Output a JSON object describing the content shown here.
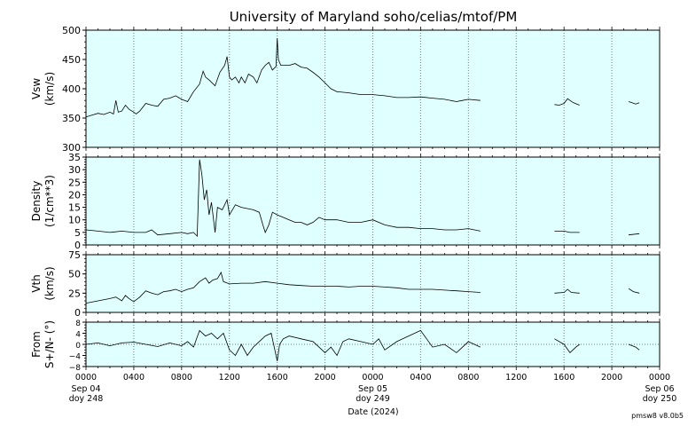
{
  "title": "University of Maryland  soho/celias/mtof/PM",
  "x_axis": {
    "label": "Date (2024)",
    "ticks": [
      {
        "hour": 0,
        "l1": "0000",
        "l2": "Sep 04",
        "l3": "doy 248"
      },
      {
        "hour": 4,
        "l1": "0400",
        "l2": "",
        "l3": ""
      },
      {
        "hour": 8,
        "l1": "0800",
        "l2": "",
        "l3": ""
      },
      {
        "hour": 12,
        "l1": "1200",
        "l2": "",
        "l3": ""
      },
      {
        "hour": 16,
        "l1": "1600",
        "l2": "",
        "l3": ""
      },
      {
        "hour": 20,
        "l1": "2000",
        "l2": "",
        "l3": ""
      },
      {
        "hour": 24,
        "l1": "0000",
        "l2": "Sep 05",
        "l3": "doy 249"
      },
      {
        "hour": 28,
        "l1": "0400",
        "l2": "",
        "l3": ""
      },
      {
        "hour": 32,
        "l1": "0800",
        "l2": "",
        "l3": ""
      },
      {
        "hour": 36,
        "l1": "1200",
        "l2": "",
        "l3": ""
      },
      {
        "hour": 40,
        "l1": "1600",
        "l2": "",
        "l3": ""
      },
      {
        "hour": 44,
        "l1": "2000",
        "l2": "",
        "l3": ""
      },
      {
        "hour": 48,
        "l1": "0000",
        "l2": "Sep 06",
        "l3": "doy 250"
      }
    ]
  },
  "footer": "pmsw8 v8.0b5",
  "colors": {
    "panel_bg": "#e0ffff",
    "line": "#000000",
    "grid": "#6e7f80"
  },
  "chart_data": [
    {
      "type": "line",
      "ylabel_1": "Vsw",
      "ylabel_2": "(km/s)",
      "ylim": [
        300,
        500
      ],
      "yticks": [
        300,
        350,
        400,
        450,
        500
      ],
      "ytick_labels": [
        "300",
        "350",
        "400",
        "450",
        "500"
      ],
      "minor_step": 10,
      "zero_line": false,
      "segments": [
        [
          [
            0,
            352
          ],
          [
            0.5,
            355
          ],
          [
            1,
            358
          ],
          [
            1.5,
            356
          ],
          [
            2,
            360
          ],
          [
            2.3,
            357
          ],
          [
            2.5,
            380
          ],
          [
            2.7,
            360
          ],
          [
            3,
            362
          ],
          [
            3.3,
            372
          ],
          [
            3.6,
            365
          ],
          [
            4,
            360
          ],
          [
            4.2,
            357
          ],
          [
            4.5,
            362
          ],
          [
            5,
            375
          ],
          [
            5.5,
            372
          ],
          [
            6,
            370
          ],
          [
            6.5,
            382
          ],
          [
            7,
            384
          ],
          [
            7.5,
            388
          ],
          [
            8,
            382
          ],
          [
            8.5,
            378
          ],
          [
            9,
            395
          ],
          [
            9.5,
            408
          ],
          [
            9.8,
            430
          ],
          [
            10,
            420
          ],
          [
            10.3,
            415
          ],
          [
            10.8,
            405
          ],
          [
            11.2,
            428
          ],
          [
            11.6,
            440
          ],
          [
            11.8,
            455
          ],
          [
            12,
            420
          ],
          [
            12.2,
            415
          ],
          [
            12.5,
            420
          ],
          [
            12.8,
            410
          ],
          [
            13,
            420
          ],
          [
            13.3,
            410
          ],
          [
            13.6,
            425
          ],
          [
            14,
            420
          ],
          [
            14.3,
            410
          ],
          [
            14.7,
            432
          ],
          [
            15,
            440
          ],
          [
            15.3,
            445
          ],
          [
            15.6,
            432
          ],
          [
            15.9,
            438
          ],
          [
            16,
            486
          ],
          [
            16.1,
            450
          ],
          [
            16.3,
            440
          ],
          [
            17,
            440
          ],
          [
            17.5,
            443
          ],
          [
            18,
            437
          ],
          [
            18.5,
            435
          ],
          [
            19,
            428
          ],
          [
            19.5,
            420
          ],
          [
            20,
            410
          ],
          [
            20.5,
            400
          ],
          [
            21,
            395
          ],
          [
            22,
            393
          ],
          [
            23,
            390
          ],
          [
            24,
            390
          ],
          [
            25,
            388
          ],
          [
            26,
            385
          ],
          [
            27,
            385
          ],
          [
            28,
            386
          ],
          [
            29,
            384
          ],
          [
            30,
            382
          ],
          [
            31,
            378
          ],
          [
            31.5,
            380
          ],
          [
            32,
            382
          ],
          [
            33,
            380
          ]
        ],
        [
          [
            39.2,
            373
          ],
          [
            39.6,
            372
          ],
          [
            40,
            375
          ],
          [
            40.3,
            383
          ],
          [
            40.5,
            380
          ],
          [
            40.8,
            376
          ],
          [
            41.3,
            372
          ]
        ],
        [
          [
            45.4,
            378
          ],
          [
            45.7,
            376
          ],
          [
            46,
            374
          ],
          [
            46.3,
            376
          ]
        ]
      ]
    },
    {
      "type": "line",
      "ylabel_1": "Density",
      "ylabel_2": "(1/cm**3)",
      "ylim": [
        0,
        35
      ],
      "yticks": [
        0,
        5,
        10,
        15,
        20,
        25,
        30,
        35
      ],
      "ytick_labels": [
        "0",
        "5",
        "10",
        "15",
        "20",
        "25",
        "30",
        "35"
      ],
      "minor_step": 1,
      "zero_line": false,
      "segments": [
        [
          [
            0,
            6
          ],
          [
            1,
            5.5
          ],
          [
            2,
            5
          ],
          [
            3,
            5.5
          ],
          [
            4,
            5
          ],
          [
            5,
            5
          ],
          [
            5.5,
            6
          ],
          [
            6,
            4
          ],
          [
            7,
            4.5
          ],
          [
            8,
            5
          ],
          [
            8.5,
            4.5
          ],
          [
            9,
            5
          ],
          [
            9.3,
            3.5
          ],
          [
            9.5,
            34
          ],
          [
            9.7,
            28
          ],
          [
            9.9,
            18
          ],
          [
            10.1,
            22
          ],
          [
            10.3,
            12
          ],
          [
            10.5,
            17
          ],
          [
            10.8,
            5
          ],
          [
            11,
            15
          ],
          [
            11.4,
            14
          ],
          [
            11.8,
            18
          ],
          [
            12,
            12
          ],
          [
            12.5,
            16
          ],
          [
            13,
            15
          ],
          [
            14,
            14
          ],
          [
            14.5,
            13
          ],
          [
            14.8,
            8
          ],
          [
            15,
            5
          ],
          [
            15.3,
            8
          ],
          [
            15.6,
            13
          ],
          [
            16,
            12
          ],
          [
            16.5,
            11
          ],
          [
            17,
            10
          ],
          [
            17.5,
            9
          ],
          [
            18,
            9
          ],
          [
            18.5,
            8
          ],
          [
            19,
            9
          ],
          [
            19.5,
            11
          ],
          [
            20,
            10
          ],
          [
            21,
            10
          ],
          [
            22,
            9
          ],
          [
            23,
            9
          ],
          [
            24,
            10
          ],
          [
            25,
            8
          ],
          [
            26,
            7
          ],
          [
            27,
            7
          ],
          [
            28,
            6.5
          ],
          [
            29,
            6.5
          ],
          [
            30,
            6
          ],
          [
            31,
            6
          ],
          [
            32,
            6.5
          ],
          [
            33,
            5.5
          ]
        ],
        [
          [
            39.2,
            5.5
          ],
          [
            40,
            5.5
          ],
          [
            40.5,
            5
          ],
          [
            41.3,
            5
          ]
        ],
        [
          [
            45.4,
            4
          ],
          [
            46.3,
            4.5
          ]
        ]
      ]
    },
    {
      "type": "line",
      "ylabel_1": "Vth",
      "ylabel_2": "(km/s)",
      "ylim": [
        0,
        75
      ],
      "yticks": [
        0,
        25,
        50,
        75
      ],
      "ytick_labels": [
        "0",
        "25",
        "50",
        "75"
      ],
      "minor_step": 5,
      "zero_line": false,
      "segments": [
        [
          [
            0,
            12
          ],
          [
            1,
            15
          ],
          [
            2,
            18
          ],
          [
            2.5,
            20
          ],
          [
            3,
            15
          ],
          [
            3.3,
            22
          ],
          [
            3.6,
            18
          ],
          [
            4,
            14
          ],
          [
            4.5,
            20
          ],
          [
            5,
            28
          ],
          [
            5.5,
            25
          ],
          [
            6,
            23
          ],
          [
            6.5,
            27
          ],
          [
            7,
            28
          ],
          [
            7.5,
            30
          ],
          [
            8,
            27
          ],
          [
            8.5,
            30
          ],
          [
            9,
            32
          ],
          [
            9.5,
            40
          ],
          [
            10,
            45
          ],
          [
            10.3,
            38
          ],
          [
            10.6,
            42
          ],
          [
            11,
            44
          ],
          [
            11.3,
            52
          ],
          [
            11.5,
            40
          ],
          [
            12,
            37
          ],
          [
            13,
            38
          ],
          [
            14,
            38
          ],
          [
            15,
            40
          ],
          [
            16,
            38
          ],
          [
            17,
            36
          ],
          [
            18,
            35
          ],
          [
            19,
            34
          ],
          [
            20,
            34
          ],
          [
            21,
            34
          ],
          [
            22,
            33
          ],
          [
            23,
            34
          ],
          [
            24,
            34
          ],
          [
            25,
            33
          ],
          [
            26,
            32
          ],
          [
            27,
            30
          ],
          [
            28,
            30
          ],
          [
            29,
            30
          ],
          [
            30,
            29
          ],
          [
            31,
            28
          ],
          [
            32,
            27
          ],
          [
            33,
            26
          ]
        ],
        [
          [
            39.2,
            25
          ],
          [
            40,
            26
          ],
          [
            40.3,
            30
          ],
          [
            40.6,
            26
          ],
          [
            41.3,
            25
          ]
        ],
        [
          [
            45.4,
            31
          ],
          [
            45.8,
            27
          ],
          [
            46.3,
            25
          ]
        ]
      ]
    },
    {
      "type": "line",
      "ylabel_1": "From",
      "ylabel_2": "S+/N- (°)",
      "ylim": [
        -8,
        8
      ],
      "yticks": [
        -8,
        -4,
        0,
        4,
        8
      ],
      "ytick_labels": [
        "−8",
        "−4",
        "0",
        "4",
        "8"
      ],
      "minor_step": 1,
      "zero_line": true,
      "segments": [
        [
          [
            0,
            0
          ],
          [
            1,
            0.5
          ],
          [
            2,
            -0.5
          ],
          [
            3,
            0.5
          ],
          [
            4,
            0.8
          ],
          [
            5,
            0
          ],
          [
            6,
            -0.8
          ],
          [
            7,
            0.5
          ],
          [
            8,
            -0.5
          ],
          [
            8.5,
            1
          ],
          [
            9,
            -1
          ],
          [
            9.5,
            5
          ],
          [
            10,
            3
          ],
          [
            10.5,
            4
          ],
          [
            11,
            2
          ],
          [
            11.5,
            4
          ],
          [
            12,
            -2
          ],
          [
            12.5,
            -4
          ],
          [
            13,
            0
          ],
          [
            13.5,
            -4
          ],
          [
            14,
            -1
          ],
          [
            14.5,
            1
          ],
          [
            15,
            3
          ],
          [
            15.5,
            4
          ],
          [
            16,
            -6
          ],
          [
            16.2,
            0
          ],
          [
            16.5,
            2
          ],
          [
            17,
            3
          ],
          [
            18,
            2
          ],
          [
            19,
            1
          ],
          [
            19.5,
            -1
          ],
          [
            20,
            -3
          ],
          [
            20.5,
            -1
          ],
          [
            21,
            -4
          ],
          [
            21.5,
            1
          ],
          [
            22,
            2
          ],
          [
            23,
            1
          ],
          [
            24,
            0
          ],
          [
            24.5,
            2
          ],
          [
            25,
            -2
          ],
          [
            26,
            1
          ],
          [
            27,
            3
          ],
          [
            28,
            5
          ],
          [
            28.5,
            2
          ],
          [
            29,
            -1
          ],
          [
            30,
            0
          ],
          [
            31,
            -3
          ],
          [
            32,
            1
          ],
          [
            33,
            -1
          ]
        ],
        [
          [
            39.2,
            2
          ],
          [
            40,
            0
          ],
          [
            40.5,
            -3
          ],
          [
            41,
            -1
          ],
          [
            41.3,
            0
          ]
        ],
        [
          [
            45.4,
            0
          ],
          [
            46,
            -1
          ],
          [
            46.3,
            -2
          ]
        ]
      ]
    }
  ]
}
